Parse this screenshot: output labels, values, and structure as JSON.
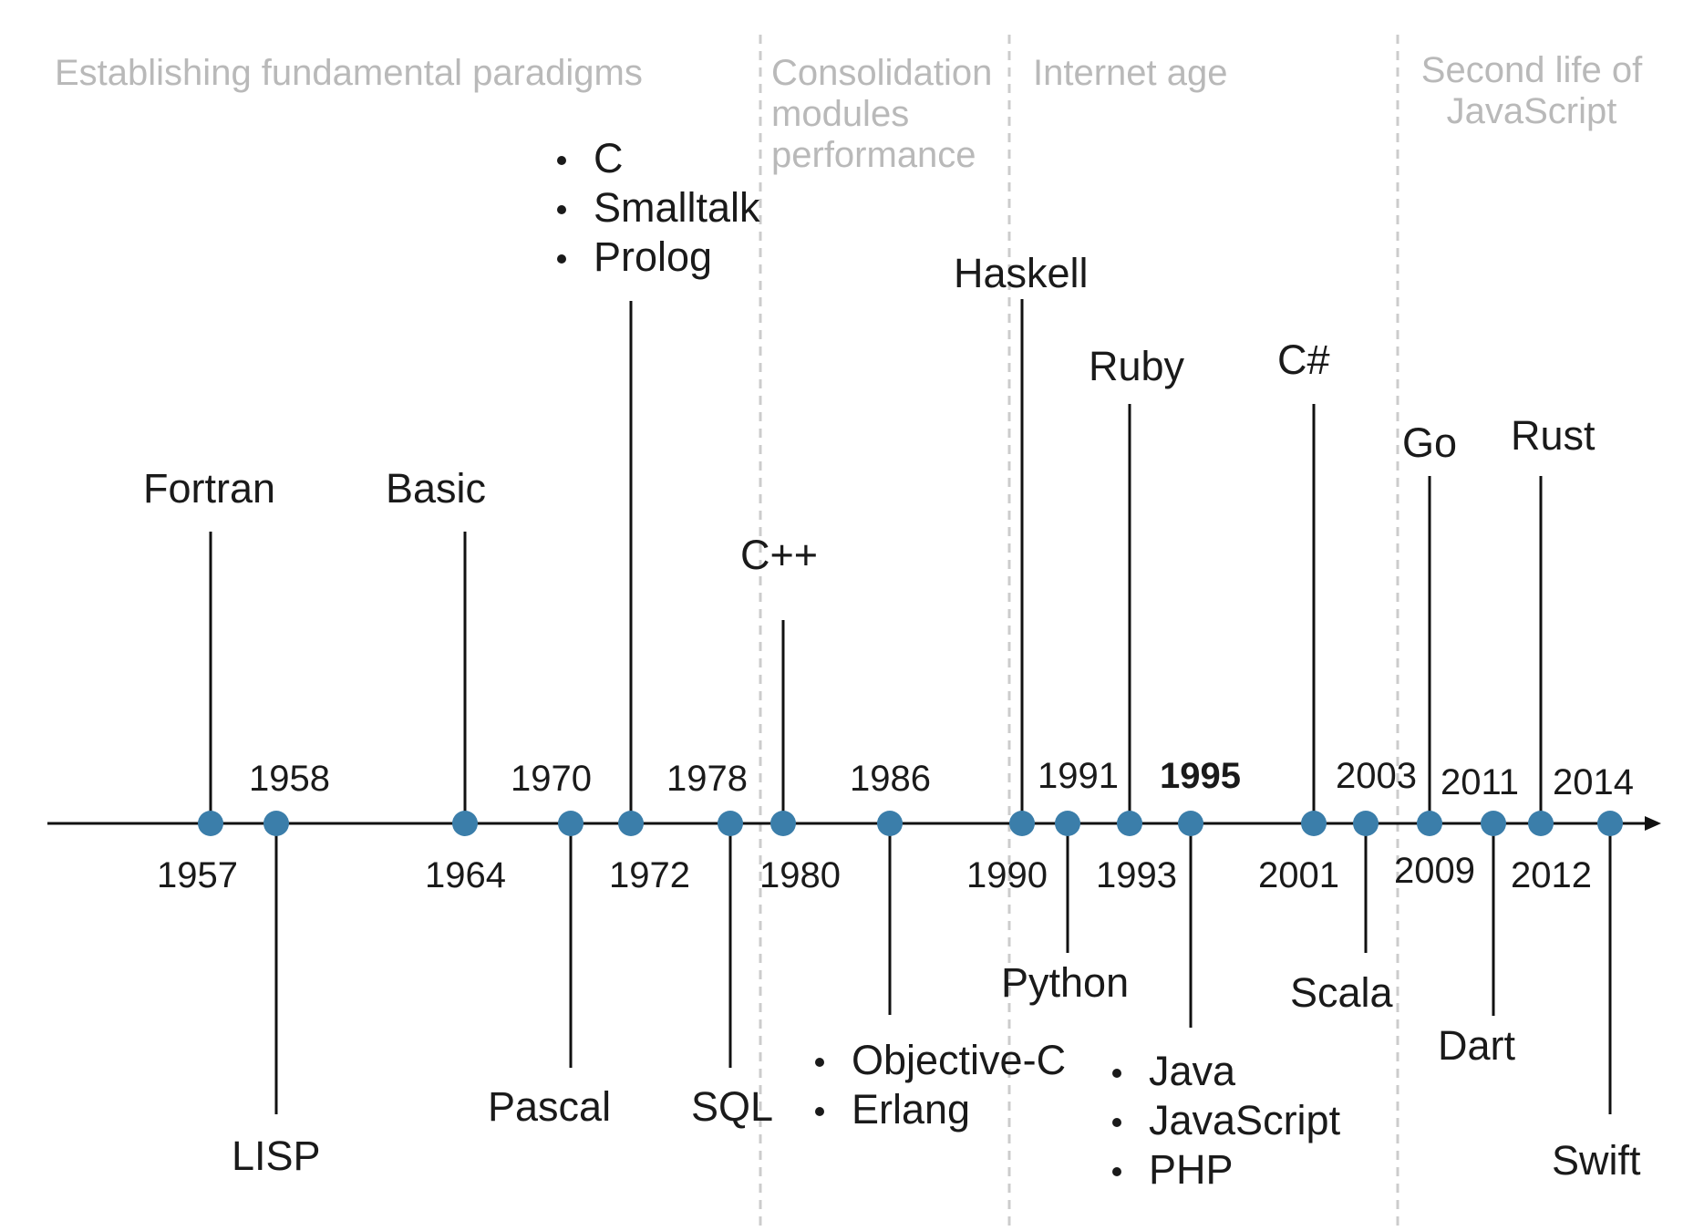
{
  "eras": [
    {
      "label": "Establishing fundamental paradigms"
    },
    {
      "label": "Consolidation\nmodules\nperformance"
    },
    {
      "label": "Internet age"
    },
    {
      "label": "Second life of\nJavaScript"
    }
  ],
  "events": [
    {
      "year": "1957",
      "languages": [
        "Fortran"
      ]
    },
    {
      "year": "1958",
      "languages": [
        "LISP"
      ]
    },
    {
      "year": "1964",
      "languages": [
        "Basic"
      ]
    },
    {
      "year": "1970",
      "languages": [
        "Pascal"
      ]
    },
    {
      "year": "1972",
      "languages": [
        "C",
        "Smalltalk",
        "Prolog"
      ]
    },
    {
      "year": "1978",
      "languages": [
        "SQL"
      ]
    },
    {
      "year": "1980",
      "languages": [
        "C++"
      ]
    },
    {
      "year": "1986",
      "languages": [
        "Objective-C",
        "Erlang"
      ]
    },
    {
      "year": "1990",
      "languages": [
        "Haskell"
      ]
    },
    {
      "year": "1991",
      "languages": [
        "Python"
      ]
    },
    {
      "year": "1993",
      "languages": [
        "Ruby"
      ]
    },
    {
      "year": "1995",
      "languages": [
        "Java",
        "JavaScript",
        "PHP"
      ],
      "emphasized": true
    },
    {
      "year": "2001",
      "languages": [
        "C#"
      ]
    },
    {
      "year": "2003",
      "languages": [
        "Scala"
      ]
    },
    {
      "year": "2009",
      "languages": [
        "Go"
      ]
    },
    {
      "year": "2011",
      "languages": [
        "Dart"
      ]
    },
    {
      "year": "2012",
      "languages": [
        "Rust"
      ]
    },
    {
      "year": "2014",
      "languages": [
        "Swift"
      ]
    }
  ],
  "colors": {
    "dot": "#3b7eaa",
    "axis": "#111111",
    "era_text": "#b9b9b9",
    "divider": "#cccccc"
  }
}
